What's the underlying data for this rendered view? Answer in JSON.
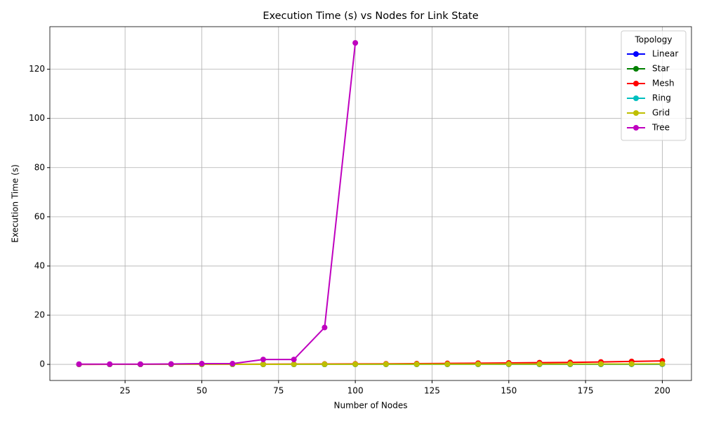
{
  "chart_data": {
    "type": "line",
    "title": "Execution Time (s) vs Nodes for Link State",
    "x_label": "Number of Nodes",
    "y_label": "Execution Time (s)",
    "legend_title": "Topology",
    "legend": "upper right",
    "grid": true,
    "x": [
      10,
      20,
      30,
      40,
      50,
      60,
      70,
      80,
      90,
      100,
      110,
      120,
      130,
      140,
      150,
      160,
      170,
      180,
      190,
      200
    ],
    "series": [
      {
        "name": "Linear",
        "color": "#0000ff",
        "values": [
          0.01,
          0.01,
          0.01,
          0.01,
          0.01,
          0.01,
          0.02,
          0.02,
          0.02,
          0.03,
          0.03,
          0.03,
          0.04,
          0.04,
          0.05,
          0.05,
          0.06,
          0.06,
          0.07,
          0.08
        ]
      },
      {
        "name": "Star",
        "color": "#008000",
        "values": [
          0.01,
          0.01,
          0.01,
          0.01,
          0.01,
          0.01,
          0.02,
          0.02,
          0.02,
          0.03,
          0.03,
          0.03,
          0.04,
          0.04,
          0.05,
          0.05,
          0.06,
          0.06,
          0.07,
          0.08
        ]
      },
      {
        "name": "Mesh",
        "color": "#ff0000",
        "values": [
          0.0,
          0.01,
          0.02,
          0.03,
          0.05,
          0.07,
          0.1,
          0.12,
          0.16,
          0.2,
          0.25,
          0.3,
          0.4,
          0.5,
          0.6,
          0.7,
          0.8,
          1.0,
          1.2,
          1.4
        ]
      },
      {
        "name": "Ring",
        "color": "#00bfbf",
        "values": [
          0.01,
          0.01,
          0.01,
          0.01,
          0.01,
          0.01,
          0.02,
          0.02,
          0.02,
          0.03,
          0.03,
          0.03,
          0.04,
          0.04,
          0.05,
          0.05,
          0.06,
          0.06,
          0.07,
          0.08
        ]
      },
      {
        "name": "Grid",
        "color": "#bfbf00",
        "values": [
          0.01,
          0.01,
          0.02,
          0.02,
          0.03,
          0.03,
          0.04,
          0.05,
          0.06,
          0.07,
          0.08,
          0.09,
          0.1,
          0.11,
          0.12,
          0.14,
          0.15,
          0.17,
          0.18,
          0.2
        ]
      },
      {
        "name": "Tree",
        "color": "#bf00bf",
        "values": [
          0.1,
          0.1,
          0.1,
          0.15,
          0.3,
          0.3,
          2.0,
          2.0,
          15.0,
          130.7,
          null,
          null,
          null,
          null,
          null,
          null,
          null,
          null,
          null,
          null
        ]
      }
    ],
    "xlim": [
      0.5,
      209.5
    ],
    "ylim": [
      -6.54,
      137.3
    ],
    "xticks": [
      25,
      50,
      75,
      100,
      125,
      150,
      175,
      200
    ],
    "yticks": [
      0,
      20,
      40,
      60,
      80,
      100,
      120
    ]
  }
}
